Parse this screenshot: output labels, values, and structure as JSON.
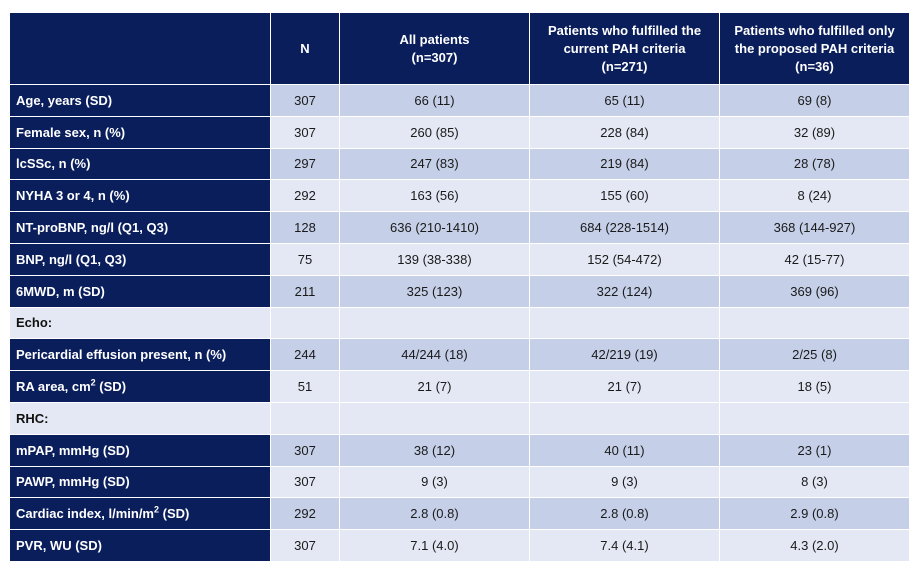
{
  "header": {
    "col0": "",
    "col1": "N",
    "col2": [
      "All patients",
      "(n=307)"
    ],
    "col3": [
      "Patients who fulfilled the",
      "current PAH criteria",
      "(n=271)"
    ],
    "col4": [
      "Patients who fulfilled only",
      "the proposed PAH criteria",
      "(n=36)"
    ]
  },
  "rows": [
    {
      "label": "Age, years (SD)",
      "n": "307",
      "all": "66 (11)",
      "current": "65 (11)",
      "proposed": "69 (8)"
    },
    {
      "label": "Female sex, n (%)",
      "n": "307",
      "all": "260 (85)",
      "current": "228 (84)",
      "proposed": "32 (89)"
    },
    {
      "label": "lcSSc, n (%)",
      "n": "297",
      "all": "247 (83)",
      "current": "219 (84)",
      "proposed": "28 (78)"
    },
    {
      "label": "NYHA 3 or 4, n (%)",
      "n": "292",
      "all": "163 (56)",
      "current": "155 (60)",
      "proposed": "8 (24)"
    },
    {
      "label": "NT-proBNP, ng/l (Q1, Q3)",
      "n": "128",
      "all": "636 (210-1410)",
      "current": "684 (228-1514)",
      "proposed": "368 (144-927)"
    },
    {
      "label": "BNP, ng/l (Q1, Q3)",
      "n": "75",
      "all": "139 (38-338)",
      "current": "152 (54-472)",
      "proposed": "42 (15-77)"
    },
    {
      "label": "6MWD, m (SD)",
      "n": "211",
      "all": "325 (123)",
      "current": "322 (124)",
      "proposed": "369 (96)"
    }
  ],
  "section_echo": "Echo:",
  "echo_rows": [
    {
      "label": "Pericardial effusion present, n (%)",
      "n": "244",
      "all": "44/244 (18)",
      "current": "42/219 (19)",
      "proposed": "2/25 (8)"
    },
    {
      "label_pre": "RA area, cm",
      "label_sup": "2",
      "label_post": " (SD)",
      "n": "51",
      "all": "21 (7)",
      "current": "21 (7)",
      "proposed": "18 (5)"
    }
  ],
  "section_rhc": "RHC:",
  "rhc_rows": [
    {
      "label": "mPAP, mmHg (SD)",
      "n": "307",
      "all": "38 (12)",
      "current": "40 (11)",
      "proposed": "23 (1)"
    },
    {
      "label": "PAWP, mmHg (SD)",
      "n": "307",
      "all": "9 (3)",
      "current": "9 (3)",
      "proposed": "8 (3)"
    },
    {
      "label_pre": "Cardiac index, l/min/m",
      "label_sup": "2",
      "label_post": " (SD)",
      "n": "292",
      "all": "2.8 (0.8)",
      "current": "2.8 (0.8)",
      "proposed": "2.9 (0.8)"
    },
    {
      "label": "PVR, WU (SD)",
      "n": "307",
      "all": "7.1 (4.0)",
      "current": "7.4 (4.1)",
      "proposed": "4.3 (2.0)"
    }
  ]
}
